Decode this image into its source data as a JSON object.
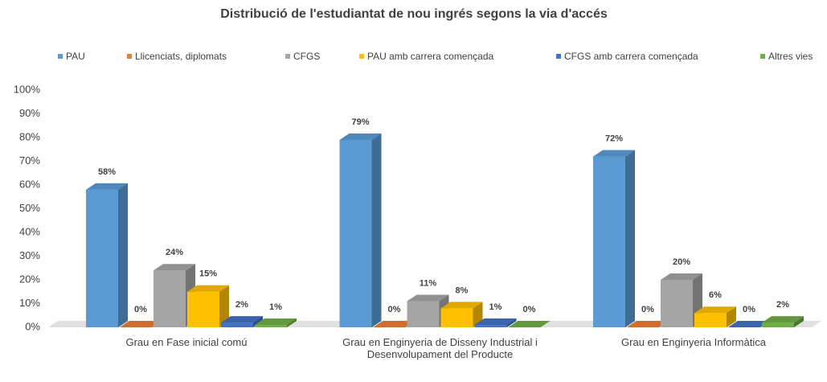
{
  "chart_data": {
    "type": "bar3d",
    "title": "Distribució de l'estudiantat de nou ingrés segons la via d'accés",
    "categories": [
      "Grau en Fase inicial comú",
      "Grau en Enginyeria de Disseny Industrial i Desenvolupament del Producte",
      "Grau en Enginyeria Informàtica"
    ],
    "series": [
      {
        "name": "PAU",
        "color": "#5b9bd5",
        "values": [
          58,
          79,
          72
        ],
        "value_labels": [
          "58%",
          "79%",
          "72%"
        ]
      },
      {
        "name": "Llicenciats, diplomats",
        "color": "#ed7d31",
        "values": [
          0,
          0,
          0
        ],
        "value_labels": [
          "0%",
          "0%",
          "0%"
        ]
      },
      {
        "name": "CFGS",
        "color": "#a5a5a5",
        "values": [
          24,
          11,
          20
        ],
        "value_labels": [
          "24%",
          "11%",
          "20%"
        ]
      },
      {
        "name": "PAU amb carrera començada",
        "color": "#ffc000",
        "values": [
          15,
          8,
          6
        ],
        "value_labels": [
          "15%",
          "8%",
          "6%"
        ]
      },
      {
        "name": "CFGS amb carrera començada",
        "color": "#4472c4",
        "values": [
          2,
          1,
          0
        ],
        "value_labels": [
          "2%",
          "1%",
          "0%"
        ]
      },
      {
        "name": "Altres vies",
        "color": "#70ad47",
        "values": [
          1,
          0,
          2
        ],
        "value_labels": [
          "1%",
          "0%",
          "2%"
        ]
      }
    ],
    "ylim": [
      0,
      100
    ],
    "yticks": [
      {
        "value": 0,
        "label": "0%"
      },
      {
        "value": 10,
        "label": "10%"
      },
      {
        "value": 20,
        "label": "20%"
      },
      {
        "value": 30,
        "label": "30%"
      },
      {
        "value": 40,
        "label": "40%"
      },
      {
        "value": 50,
        "label": "50%"
      },
      {
        "value": 60,
        "label": "60%"
      },
      {
        "value": 70,
        "label": "70%"
      },
      {
        "value": 80,
        "label": "80%"
      },
      {
        "value": 90,
        "label": "90%"
      },
      {
        "value": 100,
        "label": "100%"
      }
    ],
    "legend": "top",
    "grid": false
  }
}
